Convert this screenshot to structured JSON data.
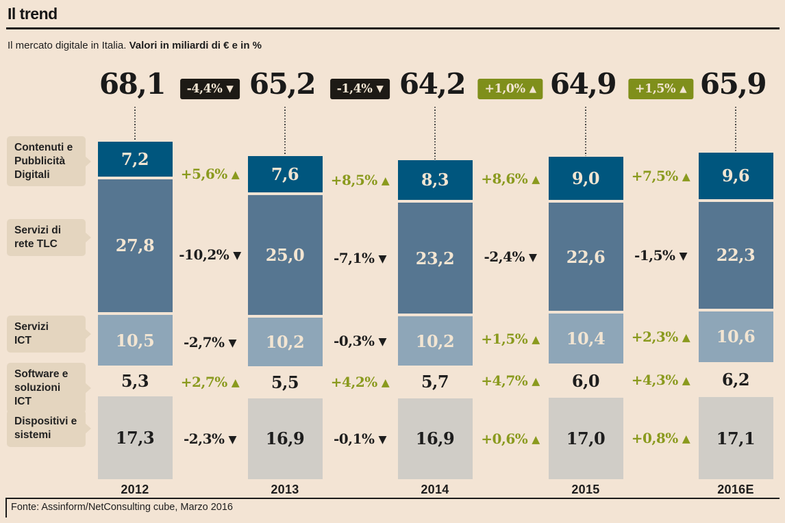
{
  "header": {
    "title": "Il trend",
    "subtitle_regular": "Il mercato digitale in Italia. ",
    "subtitle_bold": "Valori in miliardi di € e in %"
  },
  "footer": {
    "source": "Fonte: Assinform/NetConsulting cube, Marzo 2016"
  },
  "colors": {
    "background": "#f3e4d4",
    "rule": "#1a1a1a",
    "category_label_bg": "#e4d5bf",
    "negative_badge": "#1d1a15",
    "positive_badge": "#7f8f1b",
    "positive_text": "#8a9a1e",
    "negative_text": "#1d1d1d",
    "value_light": "#f2e5d2",
    "value_dark": "#1d1d1d",
    "series": {
      "contenuti": "#00567e",
      "tlc": "#567691",
      "ict": "#8ea6b8",
      "software": "transparent",
      "dispositivi": "#d0cdc7"
    }
  },
  "chart_data": {
    "type": "bar",
    "stacked": true,
    "title": "Il trend",
    "subtitle": "Il mercato digitale in Italia. Valori in miliardi di € e in %",
    "unit": "miliardi di €",
    "legend_position": "left",
    "categories": [
      "2012",
      "2013",
      "2014",
      "2015",
      "2016E"
    ],
    "totals": {
      "values": [
        68.1,
        65.2,
        64.2,
        64.9,
        65.9
      ],
      "labels": [
        "68,1",
        "65,2",
        "64,2",
        "64,9",
        "65,9"
      ],
      "changes": [
        {
          "label": "-4,4%",
          "direction": "down"
        },
        {
          "label": "-1,4%",
          "direction": "down"
        },
        {
          "label": "+1,0%",
          "direction": "up"
        },
        {
          "label": "+1,5%",
          "direction": "up"
        }
      ]
    },
    "series": [
      {
        "key": "contenuti",
        "name": "Contenuti e\nPubblicità\nDigitali",
        "value_tone": "light",
        "values": [
          7.2,
          7.6,
          8.3,
          9.0,
          9.6
        ],
        "labels": [
          "7,2",
          "7,6",
          "8,3",
          "9,0",
          "9,6"
        ],
        "changes": [
          {
            "label": "+5,6%",
            "direction": "up"
          },
          {
            "label": "+8,5%",
            "direction": "up"
          },
          {
            "label": "+8,6%",
            "direction": "up"
          },
          {
            "label": "+7,5%",
            "direction": "up"
          }
        ]
      },
      {
        "key": "tlc",
        "name": "Servizi di\nrete TLC",
        "value_tone": "light",
        "values": [
          27.8,
          25.0,
          23.2,
          22.6,
          22.3
        ],
        "labels": [
          "27,8",
          "25,0",
          "23,2",
          "22,6",
          "22,3"
        ],
        "changes": [
          {
            "label": "-10,2%",
            "direction": "down"
          },
          {
            "label": "-7,1%",
            "direction": "down"
          },
          {
            "label": "-2,4%",
            "direction": "down"
          },
          {
            "label": "-1,5%",
            "direction": "down"
          }
        ]
      },
      {
        "key": "ict",
        "name": "Servizi\nICT",
        "value_tone": "light",
        "values": [
          10.5,
          10.2,
          10.2,
          10.4,
          10.6
        ],
        "labels": [
          "10,5",
          "10,2",
          "10,2",
          "10,4",
          "10,6"
        ],
        "changes": [
          {
            "label": "-2,7%",
            "direction": "down"
          },
          {
            "label": "-0,3%",
            "direction": "down"
          },
          {
            "label": "+1,5%",
            "direction": "up"
          },
          {
            "label": "+2,3%",
            "direction": "up"
          }
        ]
      },
      {
        "key": "software",
        "name": "Software e\nsoluzioni ICT",
        "value_tone": "dark",
        "values": [
          5.3,
          5.5,
          5.7,
          6.0,
          6.2
        ],
        "labels": [
          "5,3",
          "5,5",
          "5,7",
          "6,0",
          "6,2"
        ],
        "changes": [
          {
            "label": "+2,7%",
            "direction": "up"
          },
          {
            "label": "+4,2%",
            "direction": "up"
          },
          {
            "label": "+4,7%",
            "direction": "up"
          },
          {
            "label": "+4,3%",
            "direction": "up"
          }
        ]
      },
      {
        "key": "dispositivi",
        "name": "Dispositivi e\nsistemi",
        "value_tone": "dark",
        "values": [
          17.3,
          16.9,
          16.9,
          17.0,
          17.1
        ],
        "labels": [
          "17,3",
          "16,9",
          "16,9",
          "17,0",
          "17,1"
        ],
        "changes": [
          {
            "label": "-2,3%",
            "direction": "down"
          },
          {
            "label": "-0,1%",
            "direction": "down"
          },
          {
            "label": "+0,6%",
            "direction": "up"
          },
          {
            "label": "+0,8%",
            "direction": "up"
          }
        ]
      }
    ]
  }
}
